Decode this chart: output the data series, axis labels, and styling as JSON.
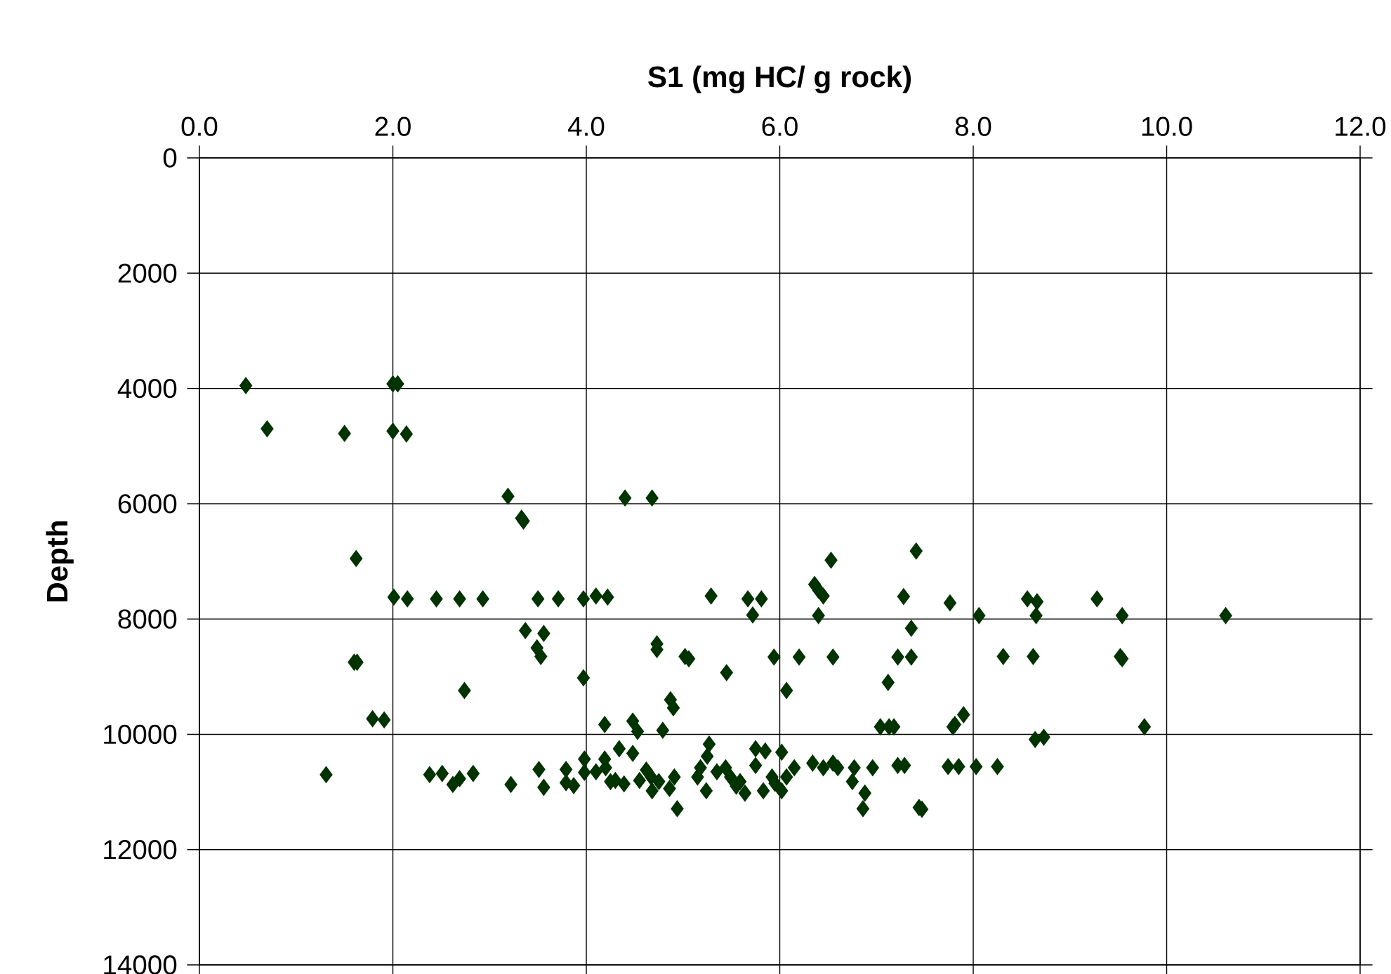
{
  "chart_data": {
    "type": "scatter",
    "xlabel": "S1 (mg HC/ g rock)",
    "ylabel": "Depth",
    "xlim": [
      0,
      12
    ],
    "ylim": [
      14000,
      0
    ],
    "xticks": [
      {
        "value": 0,
        "label": "0.0"
      },
      {
        "value": 2,
        "label": "2.0"
      },
      {
        "value": 4,
        "label": "4.0"
      },
      {
        "value": 6,
        "label": "6.0"
      },
      {
        "value": 8,
        "label": "8.0"
      },
      {
        "value": 10,
        "label": "10.0"
      },
      {
        "value": 12,
        "label": "12.0"
      }
    ],
    "yticks": [
      0,
      2000,
      4000,
      6000,
      8000,
      10000,
      12000,
      14000
    ],
    "grid": true,
    "marker": "diamond",
    "series": [
      {
        "color": "#003300",
        "x": [
          0.48,
          0.7,
          1.5,
          2.0,
          2.05,
          2.0,
          2.14,
          3.19,
          3.33,
          3.35,
          4.4,
          4.68,
          1.62,
          7.41,
          6.53,
          2.01,
          2.15,
          2.45,
          2.69,
          2.93,
          3.5,
          3.71,
          3.97,
          4.1,
          4.22,
          5.29,
          5.67,
          5.81,
          5.72,
          6.36,
          6.4,
          6.45,
          6.4,
          7.28,
          7.76,
          8.06,
          8.56,
          8.66,
          8.65,
          9.28,
          9.54,
          10.61,
          3.37,
          3.56,
          3.49,
          3.53,
          4.73,
          4.73,
          7.36,
          1.6,
          1.63,
          5.06,
          5.02,
          5.94,
          6.2,
          6.55,
          7.22,
          7.36,
          8.31,
          8.62,
          9.52,
          9.54,
          3.97,
          5.45,
          6.07,
          2.74,
          7.12,
          4.87,
          4.9,
          1.79,
          1.91,
          4.19,
          4.48,
          4.53,
          4.79,
          7.04,
          7.13,
          7.18,
          7.9,
          7.79,
          7.81,
          9.77,
          8.64,
          8.73,
          1.31,
          2.38,
          2.51,
          2.62,
          2.69,
          2.83,
          3.22,
          3.51,
          3.56,
          3.79,
          3.79,
          3.87,
          3.98,
          3.98,
          4.19,
          4.34,
          4.48,
          4.2,
          4.25,
          4.39,
          4.62,
          4.68,
          4.67,
          4.86,
          4.94,
          4.91,
          5.18,
          5.27,
          5.25,
          5.24,
          5.15,
          5.44,
          5.59,
          5.64,
          5.49,
          5.75,
          5.85,
          6.02,
          5.75,
          5.83,
          6.02,
          5.92,
          6.07,
          6.15,
          6.34,
          6.55,
          6.45,
          6.6,
          6.77,
          6.75,
          6.88,
          6.86,
          6.96,
          7.22,
          7.29,
          7.44,
          7.47,
          7.74,
          7.85,
          8.03,
          8.25,
          4.1,
          4.3,
          4.55,
          4.75,
          5.35,
          5.55,
          5.95
        ],
        "values": [
          3950,
          4700,
          4780,
          3920,
          3920,
          4740,
          4790,
          5870,
          6250,
          6300,
          5900,
          5900,
          6950,
          6820,
          6980,
          7620,
          7650,
          7650,
          7650,
          7650,
          7650,
          7650,
          7650,
          7600,
          7620,
          7600,
          7650,
          7650,
          7930,
          7400,
          7500,
          7600,
          7940,
          7610,
          7720,
          7940,
          7650,
          7700,
          7940,
          7650,
          7940,
          7940,
          8200,
          8250,
          8500,
          8650,
          8430,
          8530,
          8160,
          8750,
          8750,
          8690,
          8650,
          8660,
          8660,
          8660,
          8660,
          8660,
          8650,
          8650,
          8650,
          8690,
          9020,
          8930,
          9240,
          9240,
          9100,
          9400,
          9540,
          9730,
          9750,
          9830,
          9770,
          9950,
          9930,
          9870,
          9870,
          9870,
          9660,
          9870,
          9830,
          9870,
          10090,
          10050,
          10700,
          10700,
          10680,
          10870,
          10770,
          10680,
          10870,
          10610,
          10920,
          10610,
          10840,
          10890,
          10430,
          10660,
          10430,
          10250,
          10330,
          10580,
          10820,
          10860,
          10620,
          10980,
          10740,
          10940,
          11290,
          10740,
          10580,
          10170,
          10380,
          10980,
          10740,
          10580,
          10820,
          11020,
          10740,
          10250,
          10290,
          10310,
          10540,
          10980,
          10980,
          10740,
          10740,
          10580,
          10500,
          10500,
          10580,
          10580,
          10580,
          10820,
          11020,
          11290,
          10580,
          10540,
          10540,
          11270,
          11300,
          10560,
          10560,
          10560,
          10560,
          10650,
          10800,
          10800,
          10820,
          10650,
          10900,
          10850
        ]
      }
    ]
  }
}
